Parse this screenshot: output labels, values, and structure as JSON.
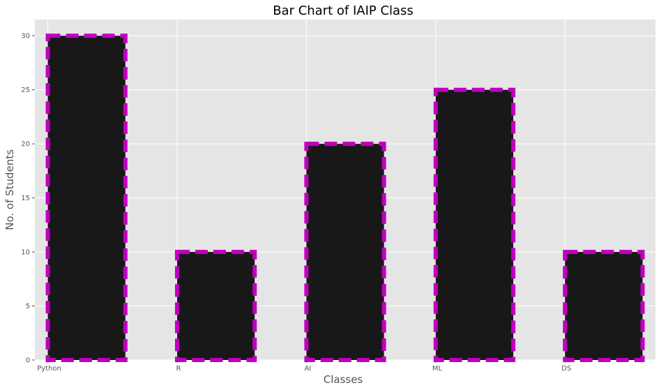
{
  "chart_data": {
    "type": "bar",
    "title": "Bar Chart of IAIP Class",
    "xlabel": "Classes",
    "ylabel": "No. of Students",
    "categories": [
      "Python",
      "R",
      "AI",
      "ML",
      "DS"
    ],
    "values": [
      30,
      10,
      20,
      25,
      10
    ],
    "ylim": [
      0,
      31.5
    ],
    "yticks": [
      0,
      5,
      10,
      15,
      20,
      25,
      30
    ],
    "grid": true,
    "style": "ggplot",
    "colors": {
      "plot_background": "#E5E5E5",
      "grid": "#FFFFFF",
      "bar_fill": "#181818",
      "bar_edge": "#BF00BF"
    },
    "bar_edge_style": "dashed"
  }
}
